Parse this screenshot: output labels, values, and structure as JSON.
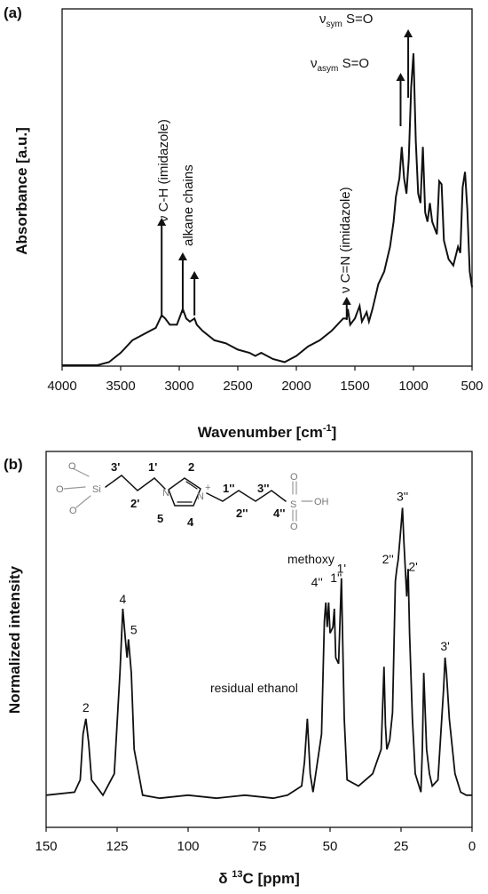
{
  "chart_data": [
    {
      "type": "line",
      "panel": "(a)",
      "xlabel": "Wavenumber [cm-1]",
      "xlabel_main": "Wavenumber [cm",
      "xlabel_sup": "-1",
      "xlabel_end": "]",
      "ylabel": "Absorbance [a.u.]",
      "xlim": [
        4000,
        500
      ],
      "ylim": [
        0,
        1
      ],
      "x_reversed": true,
      "grid": false,
      "xticks": [
        4000,
        3500,
        3000,
        2500,
        2000,
        1500,
        1000,
        500
      ],
      "series": [
        {
          "x": [
            4000,
            3800,
            3700,
            3600,
            3500,
            3400,
            3300,
            3200,
            3150,
            3120,
            3080,
            3020,
            2970,
            2940,
            2910,
            2870,
            2850,
            2800,
            2700,
            2600,
            2500,
            2400,
            2350,
            2300,
            2200,
            2100,
            2050,
            2000,
            1900,
            1800,
            1700,
            1650,
            1600,
            1570,
            1560,
            1540,
            1500,
            1460,
            1440,
            1400,
            1380,
            1350,
            1300,
            1250,
            1200,
            1170,
            1150,
            1120,
            1100,
            1080,
            1060,
            1040,
            1020,
            1000,
            980,
            960,
            940,
            920,
            900,
            880,
            860,
            840,
            800,
            780,
            760,
            740,
            700,
            660,
            620,
            600,
            580,
            560,
            540,
            520,
            500
          ],
          "y": [
            0.0,
            0.0,
            0.0,
            0.01,
            0.04,
            0.08,
            0.1,
            0.12,
            0.16,
            0.15,
            0.13,
            0.13,
            0.18,
            0.15,
            0.14,
            0.15,
            0.13,
            0.11,
            0.08,
            0.07,
            0.05,
            0.04,
            0.03,
            0.04,
            0.02,
            0.01,
            0.02,
            0.03,
            0.06,
            0.08,
            0.11,
            0.13,
            0.15,
            0.15,
            0.18,
            0.13,
            0.15,
            0.19,
            0.14,
            0.17,
            0.14,
            0.18,
            0.26,
            0.3,
            0.38,
            0.46,
            0.54,
            0.6,
            0.7,
            0.6,
            0.55,
            0.66,
            0.89,
            1.0,
            0.72,
            0.55,
            0.52,
            0.7,
            0.49,
            0.46,
            0.52,
            0.46,
            0.42,
            0.59,
            0.58,
            0.4,
            0.34,
            0.32,
            0.38,
            0.36,
            0.57,
            0.62,
            0.5,
            0.3,
            0.25
          ]
        }
      ],
      "annotations": [
        {
          "text": "ν C-H (imidazole)",
          "x": 3150
        },
        {
          "text": "alkane chains",
          "x": 2920
        },
        {
          "text": "ν C=N (imidazole)",
          "x": 1570
        },
        {
          "text": "νasym S=O",
          "x": 1110
        },
        {
          "text": "νsym S=O",
          "x": 1045
        }
      ]
    },
    {
      "type": "line",
      "panel": "(b)",
      "xlabel": "δ 13C [ppm]",
      "xlabel_pre": "δ ",
      "xlabel_sup": "13",
      "xlabel_post": "C [ppm]",
      "ylabel": "Normalized intensity",
      "xlim": [
        150,
        0
      ],
      "ylim": [
        0,
        1
      ],
      "x_reversed": true,
      "grid": false,
      "xticks": [
        150,
        125,
        100,
        75,
        50,
        25,
        0
      ],
      "peaks": [
        {
          "label": "2",
          "ppm": 136.0
        },
        {
          "label": "4",
          "ppm": 123.0
        },
        {
          "label": "5",
          "ppm": 121.0
        },
        {
          "label": "residual ethanol",
          "ppm": 58.0
        },
        {
          "label": "4''",
          "ppm": 51.5
        },
        {
          "label": "methoxy",
          "ppm": 50.5
        },
        {
          "label": "1''",
          "ppm": 48.5
        },
        {
          "label": "1'",
          "ppm": 46.0
        },
        {
          "label": "2''",
          "ppm": 26.5
        },
        {
          "label": "3''",
          "ppm": 24.5
        },
        {
          "label": "2'",
          "ppm": 22.0
        },
        {
          "label": "3'",
          "ppm": 9.5
        }
      ],
      "series": [
        {
          "x": [
            150,
            140,
            138,
            137,
            136,
            135,
            134,
            130,
            126,
            124,
            123,
            122,
            121.5,
            121,
            120,
            119,
            116,
            110,
            100,
            90,
            80,
            70,
            65,
            60,
            59,
            58,
            57,
            56,
            53,
            52,
            51.5,
            51,
            50.5,
            50,
            49,
            48.5,
            48,
            47,
            46,
            45,
            44,
            40,
            35,
            32,
            31,
            30.5,
            30,
            29,
            28,
            27,
            26.5,
            26,
            25,
            24.5,
            24,
            23,
            22.5,
            22,
            21,
            20,
            18,
            17.5,
            17,
            16,
            15,
            14,
            12,
            10,
            9.5,
            9,
            8,
            6,
            4,
            2,
            0
          ],
          "y": [
            0.05,
            0.06,
            0.1,
            0.25,
            0.3,
            0.22,
            0.1,
            0.05,
            0.12,
            0.45,
            0.66,
            0.55,
            0.5,
            0.56,
            0.45,
            0.2,
            0.05,
            0.04,
            0.05,
            0.04,
            0.05,
            0.04,
            0.05,
            0.08,
            0.16,
            0.3,
            0.12,
            0.06,
            0.25,
            0.62,
            0.68,
            0.6,
            0.68,
            0.58,
            0.6,
            0.66,
            0.5,
            0.48,
            0.76,
            0.3,
            0.1,
            0.08,
            0.12,
            0.2,
            0.47,
            0.28,
            0.2,
            0.23,
            0.32,
            0.75,
            0.79,
            0.82,
            0.93,
            0.99,
            0.88,
            0.7,
            0.79,
            0.58,
            0.3,
            0.12,
            0.06,
            0.2,
            0.45,
            0.2,
            0.12,
            0.08,
            0.1,
            0.4,
            0.5,
            0.45,
            0.3,
            0.12,
            0.06,
            0.05,
            0.05
          ]
        }
      ],
      "inset_molecule": {
        "labels": [
          "3'",
          "1'",
          "2'",
          "2",
          "5",
          "4",
          "1''",
          "3''",
          "2''",
          "4''",
          "Si",
          "N",
          "N",
          "+",
          "S",
          "OH"
        ]
      }
    }
  ]
}
